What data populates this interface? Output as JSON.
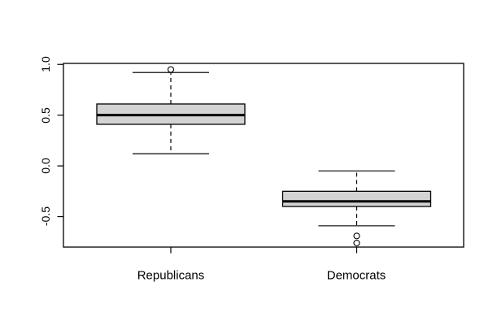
{
  "colors": {
    "background": "#ffffff",
    "frame": "#000000",
    "box_fill": "#d3d3d3",
    "box_border": "#000000",
    "median": "#000000",
    "whisker": "#000000",
    "cap": "#333333",
    "outlier_stroke": "#000000",
    "outlier_fill": "#ffffff"
  },
  "chart_data": {
    "type": "boxplot",
    "title": "",
    "xlabel": "",
    "ylabel": "",
    "grid": false,
    "legend": "none",
    "categories": [
      "Republicans",
      "Democrats"
    ],
    "y_ticks": [
      1.0,
      0.5,
      0.0,
      -0.5
    ],
    "y_tick_labels": [
      "1.0",
      "0.5",
      "0.0",
      "-0.5"
    ],
    "ylim": [
      -0.8,
      1.01
    ],
    "series": [
      {
        "name": "Republicans",
        "lower_whisker": 0.12,
        "q1": 0.41,
        "median": 0.5,
        "q3": 0.61,
        "upper_whisker": 0.92,
        "outliers": [
          0.95
        ]
      },
      {
        "name": "Democrats",
        "lower_whisker": -0.59,
        "q1": -0.4,
        "median": -0.35,
        "q3": -0.25,
        "upper_whisker": -0.05,
        "outliers": [
          -0.69,
          -0.76
        ]
      }
    ]
  }
}
